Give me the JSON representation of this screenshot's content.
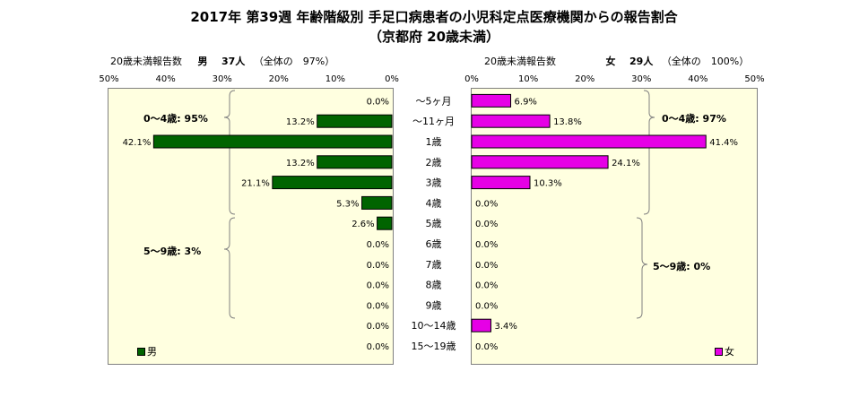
{
  "title": "2017年 第39週 年齢階級別 手足口病患者の小児科定点医療機関からの報告割合",
  "subtitle": "（京都府 20歳未満）",
  "header_male": {
    "label": "20歳未満報告数",
    "sex": "男",
    "count": "37人",
    "share": "（全体の　97%）"
  },
  "header_female": {
    "label": "20歳未満報告数",
    "sex": "女",
    "count": "29人",
    "share": "（全体の　100%）"
  },
  "groups": {
    "male_0_4": "0～4歳: 95%",
    "male_5_9": "5～9歳: 3%",
    "female_0_4": "0～4歳: 97%",
    "female_5_9": "5～9歳: 0%"
  },
  "legend": {
    "male": "男",
    "female": "女"
  },
  "chart_data": {
    "type": "bar",
    "orientation": "horizontal-butterfly",
    "title": "2017年 第39週 年齢階級別 手足口病患者の小児科定点医療機関からの報告割合",
    "subtitle": "（京都府 20歳未満）",
    "categories": [
      "～5ヶ月",
      "～11ヶ月",
      "1歳",
      "2歳",
      "3歳",
      "4歳",
      "5歳",
      "6歳",
      "7歳",
      "8歳",
      "9歳",
      "10～14歳",
      "15～19歳"
    ],
    "xlim": [
      0,
      50
    ],
    "ticks_male": [
      "50%",
      "40%",
      "30%",
      "20%",
      "10%",
      "0%"
    ],
    "ticks_female": [
      "0%",
      "10%",
      "20%",
      "30%",
      "40%",
      "50%"
    ],
    "series": [
      {
        "name": "男",
        "color": "#006400",
        "values": [
          0.0,
          13.2,
          42.1,
          13.2,
          21.1,
          5.3,
          2.6,
          0.0,
          0.0,
          0.0,
          0.0,
          0.0,
          0.0
        ],
        "labels": [
          "0.0%",
          "13.2%",
          "42.1%",
          "13.2%",
          "21.1%",
          "5.3%",
          "2.6%",
          "0.0%",
          "0.0%",
          "0.0%",
          "0.0%",
          "0.0%",
          "0.0%"
        ]
      },
      {
        "name": "女",
        "color": "#e600e6",
        "values": [
          6.9,
          13.8,
          41.4,
          24.1,
          10.3,
          0.0,
          0.0,
          0.0,
          0.0,
          0.0,
          0.0,
          3.4,
          0.0
        ],
        "labels": [
          "6.9%",
          "13.8%",
          "41.4%",
          "24.1%",
          "10.3%",
          "0.0%",
          "0.0%",
          "0.0%",
          "0.0%",
          "0.0%",
          "0.0%",
          "3.4%",
          "0.0%"
        ]
      }
    ],
    "legend_position": "bottom-right of each panel",
    "grid": false
  }
}
